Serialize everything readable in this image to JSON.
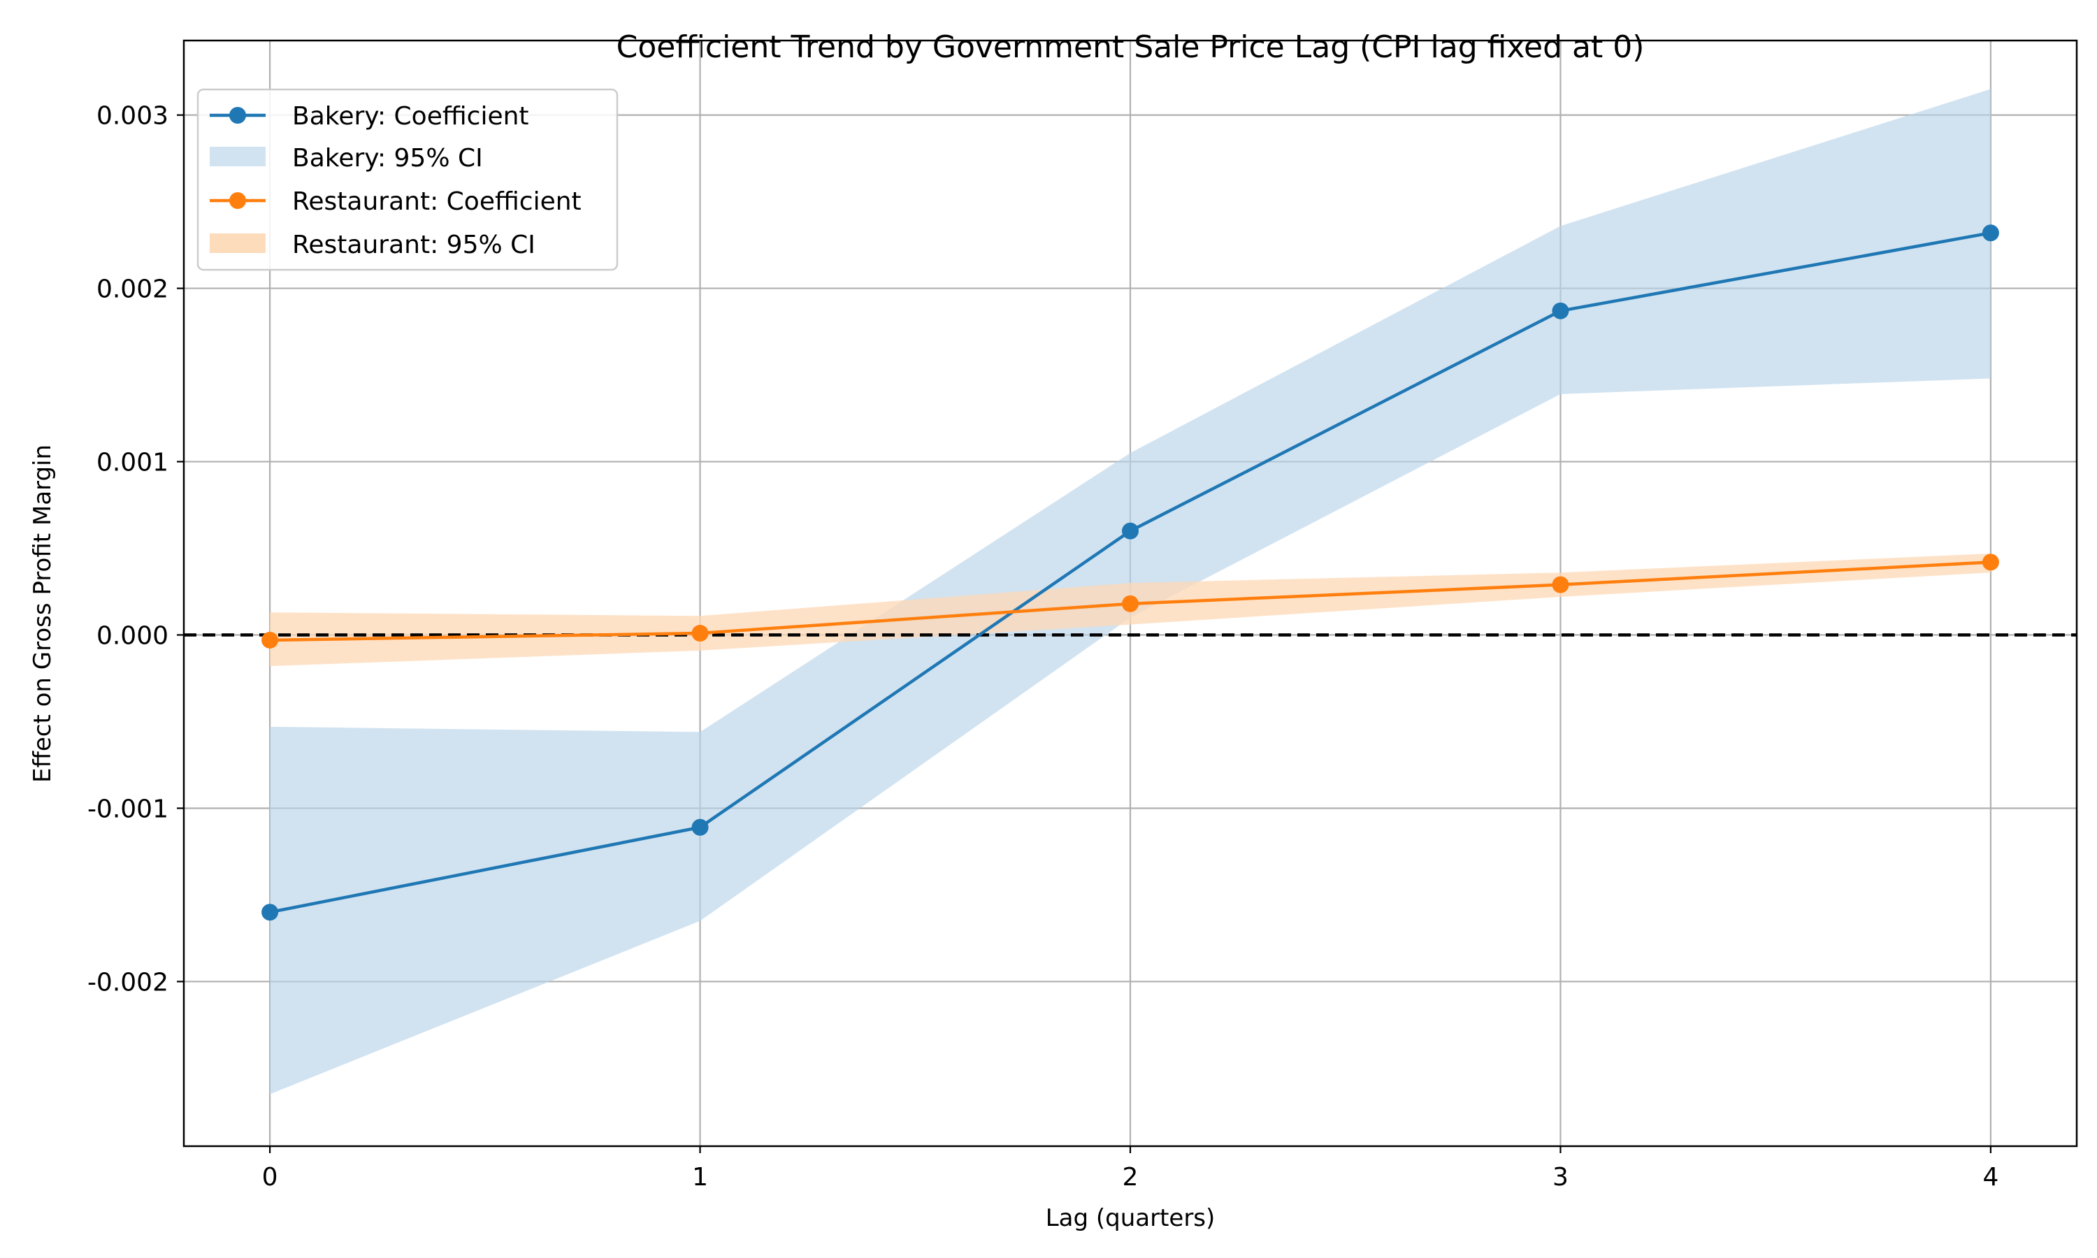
{
  "chart_data": {
    "type": "line",
    "title": "Coefficient Trend by Government Sale Price Lag (CPI lag fixed at 0)",
    "xlabel": "Lag (quarters)",
    "ylabel": "Effect on Gross Profit Margin",
    "x": [
      0,
      1,
      2,
      3,
      4
    ],
    "xlim": [
      -0.2,
      4.2
    ],
    "ylim": [
      -0.00295,
      0.00343
    ],
    "xticks": [
      "0",
      "1",
      "2",
      "3",
      "4"
    ],
    "yticks": [
      {
        "value": -0.002,
        "label": "-0.002"
      },
      {
        "value": -0.001,
        "label": "-0.001"
      },
      {
        "value": 0.0,
        "label": "0.000"
      },
      {
        "value": 0.001,
        "label": "0.001"
      },
      {
        "value": 0.002,
        "label": "0.002"
      },
      {
        "value": 0.003,
        "label": "0.003"
      }
    ],
    "grid": true,
    "reference_line": {
      "y": 0,
      "style": "dashed",
      "color": "#000000"
    },
    "legend_position": "top-left",
    "series": [
      {
        "name": "Bakery: Coefficient",
        "ci_name": "Bakery: 95% CI",
        "color": "#1f77b4",
        "ci_color": "#b9d4e9",
        "values": [
          -0.0016,
          -0.00111,
          0.0006,
          0.00187,
          0.00232
        ],
        "ci_lower": [
          -0.00265,
          -0.00165,
          0.0001,
          0.00139,
          0.00148
        ],
        "ci_upper": [
          -0.00053,
          -0.00056,
          0.00105,
          0.00236,
          0.00315
        ]
      },
      {
        "name": "Restaurant: Coefficient",
        "ci_name": "Restaurant: 95% CI",
        "color": "#ff7f0e",
        "ci_color": "#fdd8b5",
        "values": [
          -3e-05,
          1e-05,
          0.00018,
          0.00029,
          0.00042
        ],
        "ci_lower": [
          -0.00018,
          -9e-05,
          6e-05,
          0.00022,
          0.00036
        ],
        "ci_upper": [
          0.00013,
          0.00011,
          0.0003,
          0.00036,
          0.00047
        ]
      }
    ]
  }
}
